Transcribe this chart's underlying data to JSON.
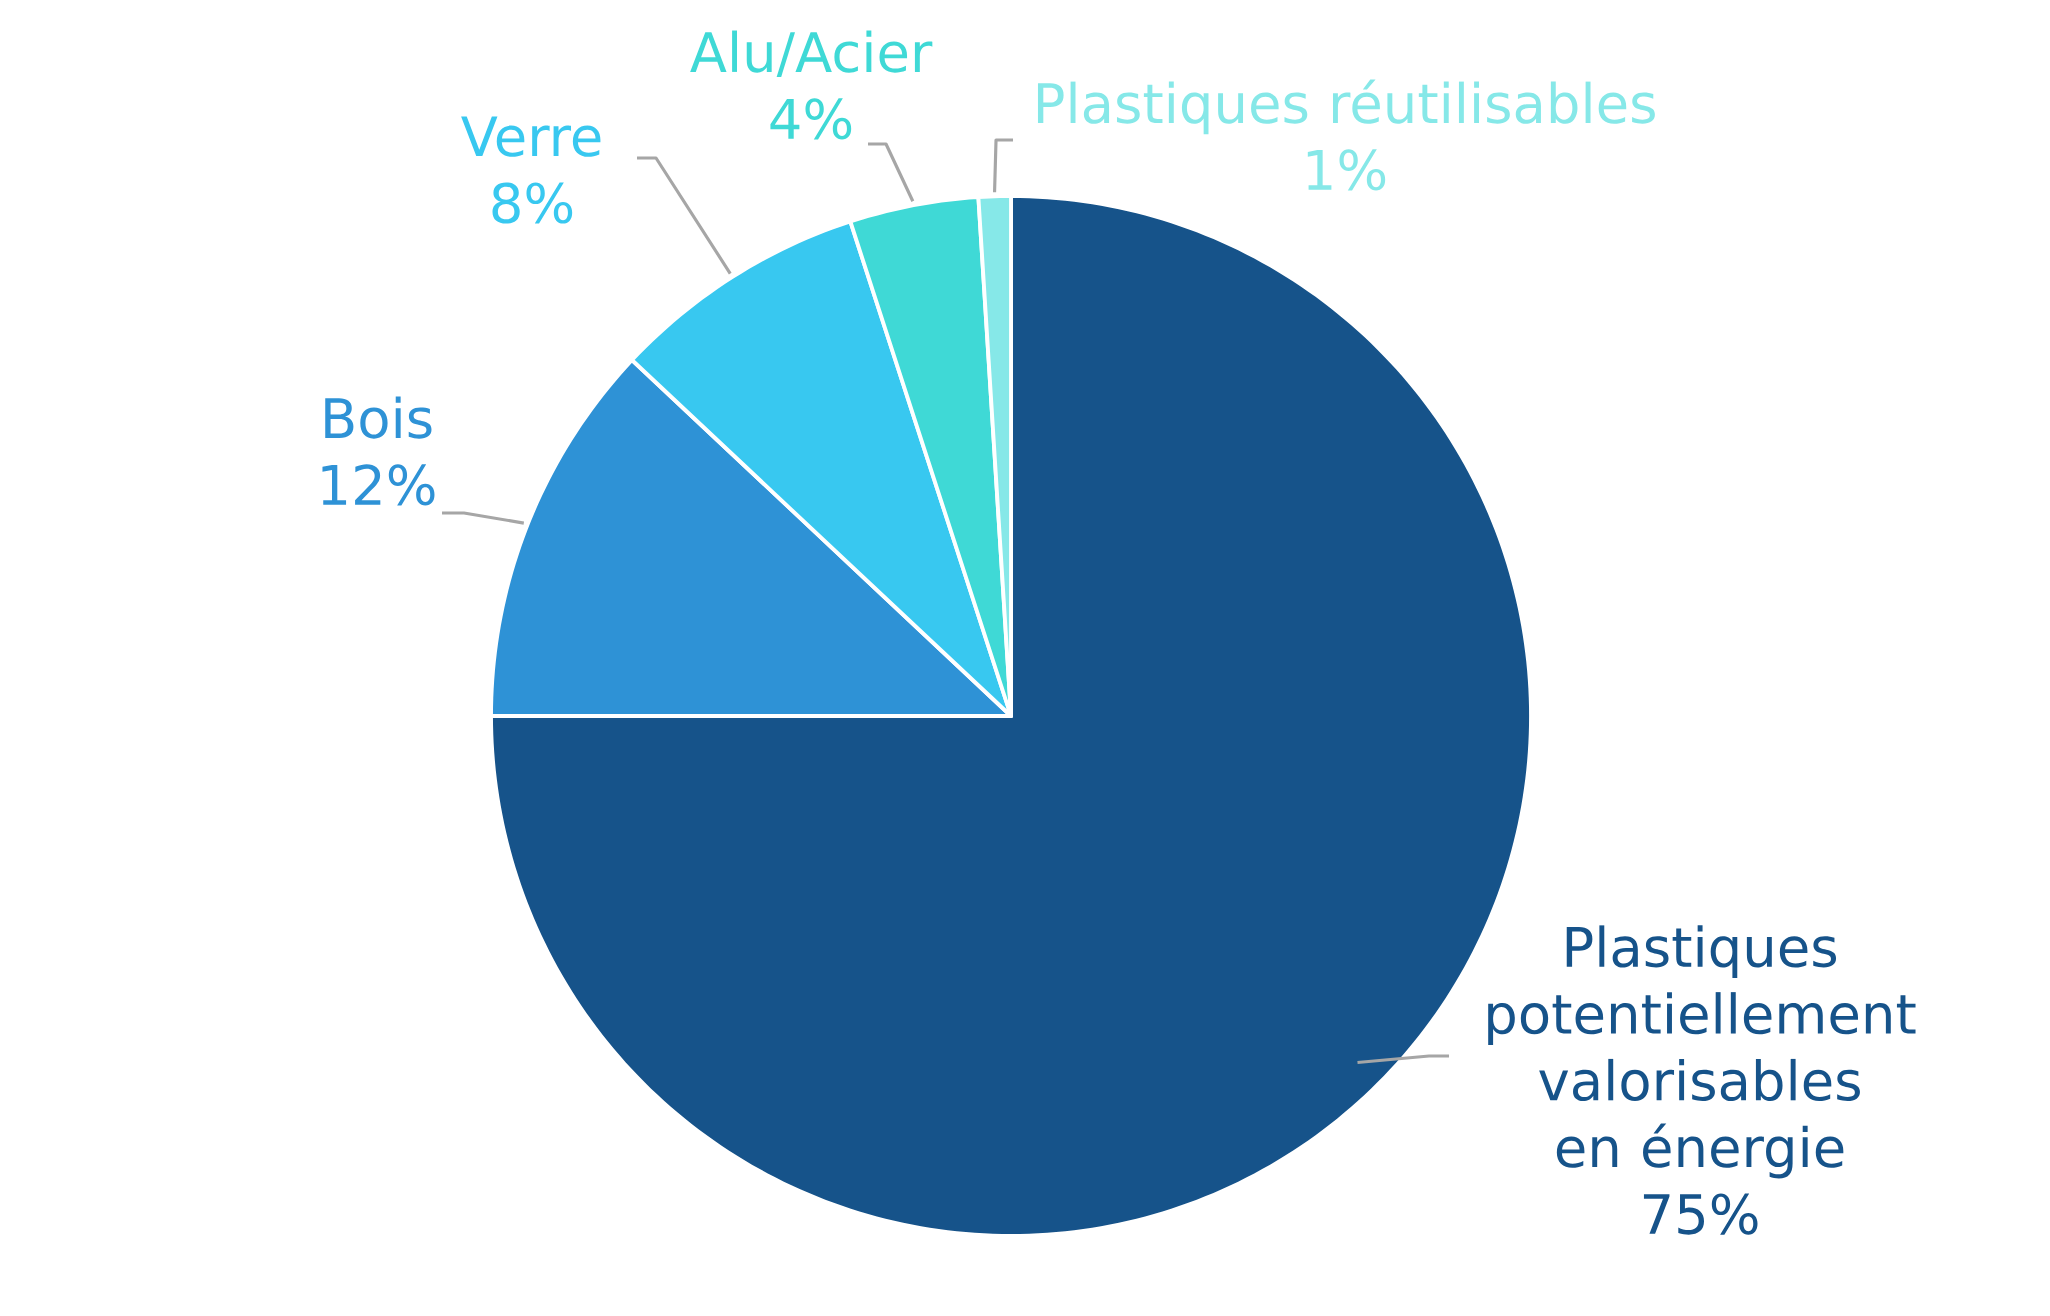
{
  "chart_data": {
    "type": "pie",
    "categories": [
      "Plastiques potentiellement valorisables en énergie",
      "Bois",
      "Verre",
      "Alu/Acier",
      "Plastiques réutilisables"
    ],
    "values": [
      75,
      12,
      8,
      4,
      1
    ],
    "value_labels": [
      "75%",
      "12%",
      "8%",
      "4%",
      "1%"
    ],
    "colors": [
      "#16538a",
      "#2e92d6",
      "#38c8f0",
      "#3fd9d6",
      "#86e8e8"
    ]
  }
}
